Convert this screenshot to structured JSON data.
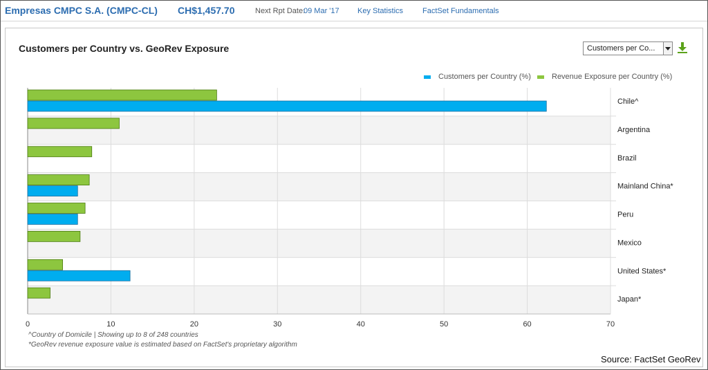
{
  "header": {
    "company": "Empresas CMPC S.A. (CMPC-CL)",
    "price": "CH$1,457.70",
    "next_rpt_label": "Next Rpt Date:",
    "next_rpt_date": "09 Mar '17",
    "key_statistics": "Key Statistics",
    "factset_fundamentals": "FactSet Fundamentals"
  },
  "controls": {
    "selector_value": "Customers per Co...",
    "download_icon": "download-arrow-icon"
  },
  "colors": {
    "customers": "#00adef",
    "revenue": "#8dc63f",
    "link": "#2b6cb0"
  },
  "chart_data": {
    "type": "bar",
    "orientation": "horizontal",
    "title": "Customers per Country vs. GeoRev Exposure",
    "categories": [
      "Chile^",
      "Argentina",
      "Brazil",
      "Mainland China*",
      "Peru",
      "Mexico",
      "United States*",
      "Japan*"
    ],
    "series": [
      {
        "name": "Revenue Exposure per Country (%)",
        "values": [
          22.7,
          11.0,
          7.7,
          7.4,
          6.9,
          6.3,
          4.2,
          2.7
        ]
      },
      {
        "name": "Customers per Country (%)",
        "values": [
          62.3,
          null,
          null,
          6.0,
          6.0,
          null,
          12.3,
          null
        ]
      }
    ],
    "legend_order": [
      "Customers per Country (%)",
      "Revenue Exposure per Country (%)"
    ],
    "legend_position": "top-right",
    "xlim": [
      0,
      70
    ],
    "xticks": [
      0,
      10,
      20,
      30,
      40,
      50,
      60,
      70
    ],
    "xlabel": "",
    "ylabel": "",
    "grid": true
  },
  "footnotes": {
    "line1": "^Country of Domicile | Showing up to 8 of 248 countries",
    "line2": "*GeoRev revenue exposure value is estimated based on FactSet's proprietary algorithm"
  },
  "source": "Source: FactSet GeoRev"
}
